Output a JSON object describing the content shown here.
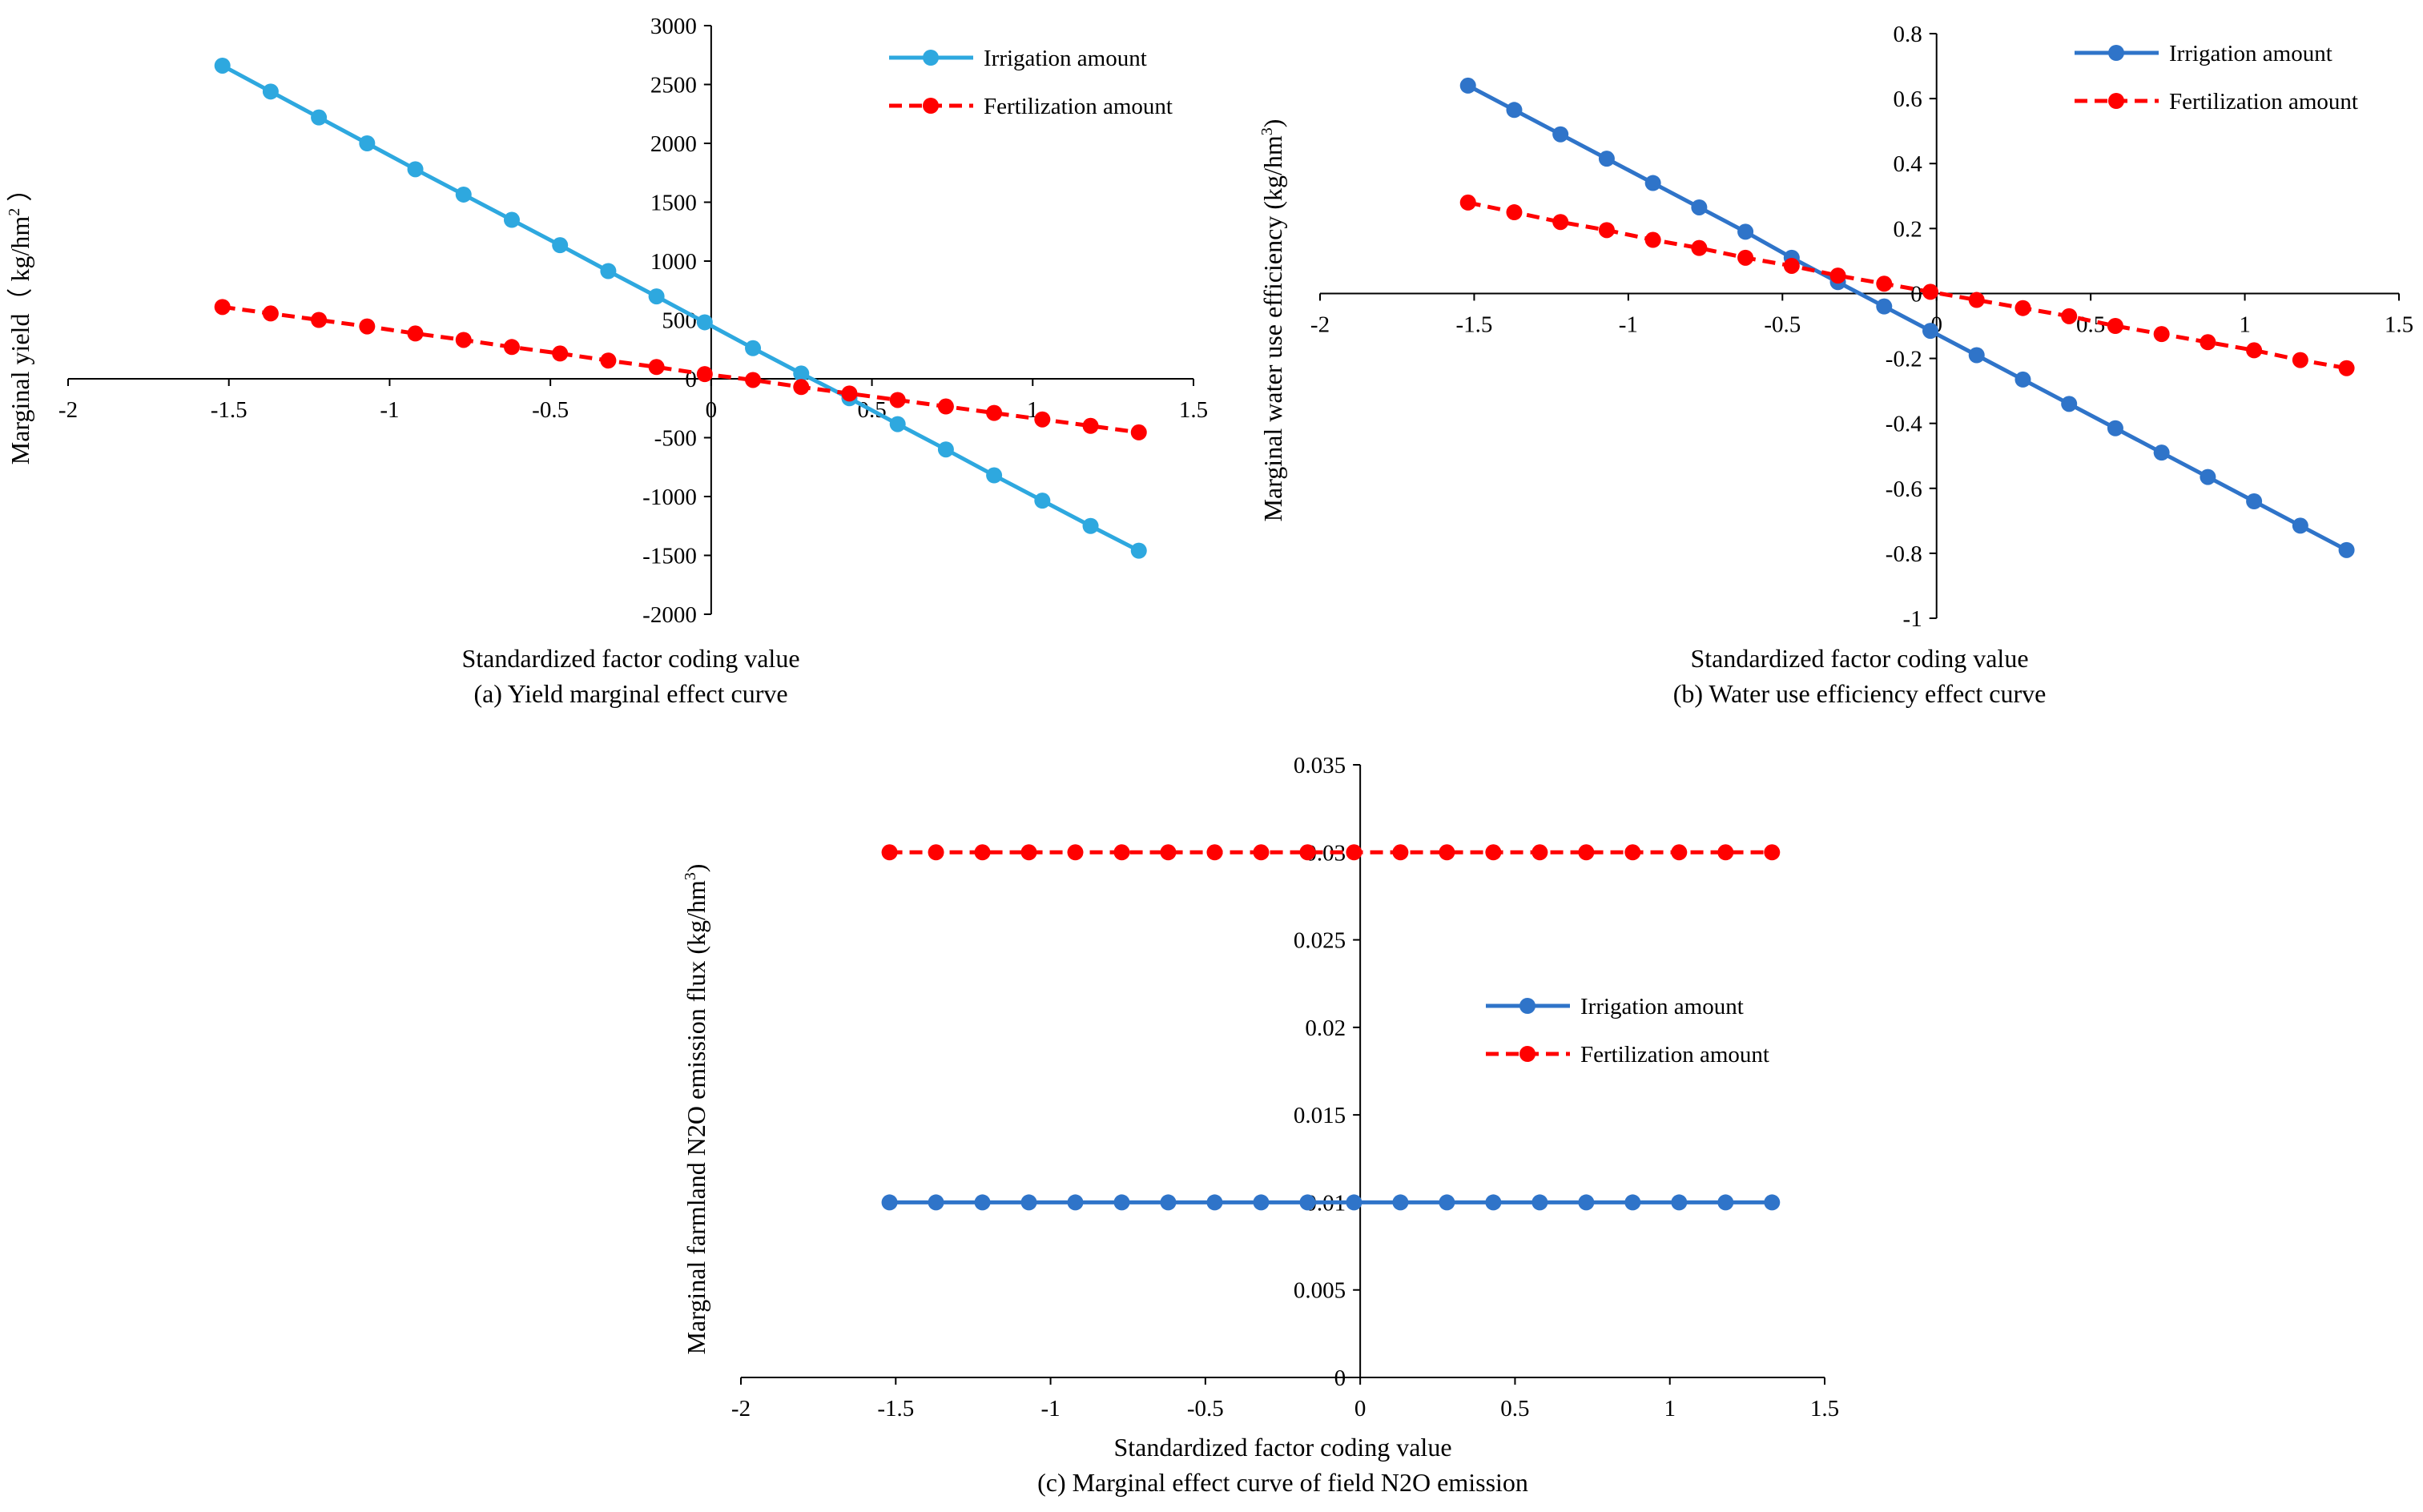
{
  "chart_data": [
    {
      "id": "a",
      "type": "line",
      "caption": "(a) Yield marginal effect curve",
      "xlabel": "Standardized factor coding value",
      "ylabel_main": "Marginal yield",
      "ylabel_unit": "（ kg/hm",
      "ylabel_exp": "2",
      "ylabel_close": " ）",
      "xlim": [
        -2,
        1.5
      ],
      "ylim": [
        -2000,
        3000
      ],
      "xticks": [
        "-2",
        "-1.5",
        "-1",
        "-0.5",
        "0",
        "0.5",
        "1",
        "1.5"
      ],
      "yticks": [
        "-2000",
        "-1500",
        "-1000",
        "-500",
        "0",
        "500",
        "1000",
        "1500",
        "2000",
        "2500",
        "3000"
      ],
      "legend_position": "top-right",
      "series": [
        {
          "name": "Irrigation amount",
          "color": "#2EA8DF",
          "dash": "solid",
          "x": [
            -1.52,
            -1.37,
            -1.22,
            -1.07,
            -0.92,
            -0.77,
            -0.62,
            -0.47,
            -0.32,
            -0.17,
            -0.02,
            0.13,
            0.28,
            0.43,
            0.58,
            0.73,
            0.88,
            1.03,
            1.18,
            1.33
          ],
          "y": [
            2660,
            2440,
            2220,
            2000,
            1780,
            1565,
            1350,
            1135,
            915,
            700,
            480,
            260,
            45,
            -165,
            -385,
            -600,
            -820,
            -1035,
            -1250,
            -1460
          ]
        },
        {
          "name": "Fertilization amount",
          "color": "#FF0000",
          "dash": "dashed",
          "x": [
            -1.52,
            -1.37,
            -1.22,
            -1.07,
            -0.92,
            -0.77,
            -0.62,
            -0.47,
            -0.32,
            -0.17,
            -0.02,
            0.13,
            0.28,
            0.43,
            0.58,
            0.73,
            0.88,
            1.03,
            1.18,
            1.33
          ],
          "y": [
            610,
            555,
            500,
            445,
            385,
            330,
            270,
            215,
            155,
            100,
            40,
            -10,
            -70,
            -125,
            -180,
            -235,
            -290,
            -345,
            -400,
            -455
          ]
        }
      ]
    },
    {
      "id": "b",
      "type": "line",
      "caption": "(b) Water use efficiency effect curve",
      "xlabel": "Standardized factor coding value",
      "ylabel_main": "Marginal water use efficiency (kg/hm",
      "ylabel_exp": "3",
      "ylabel_close": ")",
      "xlim": [
        -2,
        1.5
      ],
      "ylim": [
        -1,
        0.8
      ],
      "xticks": [
        "-2",
        "-1.5",
        "-1",
        "-0.5",
        "0",
        "0.5",
        "1",
        "1.5"
      ],
      "yticks": [
        "-1",
        "-0.8",
        "-0.6",
        "-0.4",
        "-0.2",
        "0",
        "0.2",
        "0.4",
        "0.6",
        "0.8"
      ],
      "legend_position": "top-right",
      "series": [
        {
          "name": "Irrigation amount",
          "color": "#2F74C9",
          "dash": "solid",
          "x": [
            -1.52,
            -1.37,
            -1.22,
            -1.07,
            -0.92,
            -0.77,
            -0.62,
            -0.47,
            -0.32,
            -0.17,
            -0.02,
            0.13,
            0.28,
            0.43,
            0.58,
            0.73,
            0.88,
            1.03,
            1.18,
            1.33
          ],
          "y": [
            0.64,
            0.565,
            0.49,
            0.415,
            0.34,
            0.265,
            0.19,
            0.11,
            0.035,
            -0.04,
            -0.115,
            -0.19,
            -0.265,
            -0.34,
            -0.415,
            -0.49,
            -0.565,
            -0.64,
            -0.715,
            -0.79
          ]
        },
        {
          "name": "Fertilization amount",
          "color": "#FF0000",
          "dash": "dashed",
          "x": [
            -1.52,
            -1.37,
            -1.22,
            -1.07,
            -0.92,
            -0.77,
            -0.62,
            -0.47,
            -0.32,
            -0.17,
            -0.02,
            0.13,
            0.28,
            0.43,
            0.58,
            0.73,
            0.88,
            1.03,
            1.18,
            1.33
          ],
          "y": [
            0.28,
            0.25,
            0.22,
            0.195,
            0.165,
            0.14,
            0.11,
            0.085,
            0.055,
            0.03,
            0.005,
            -0.02,
            -0.045,
            -0.07,
            -0.1,
            -0.125,
            -0.15,
            -0.175,
            -0.205,
            -0.23
          ]
        }
      ]
    },
    {
      "id": "c",
      "type": "line",
      "caption": "(c) Marginal effect curve of field N2O emission",
      "xlabel": "Standardized factor coding value",
      "ylabel_main": "Marginal farmland N2O emission flux (kg/hm",
      "ylabel_exp": "3",
      "ylabel_close": ")",
      "xlim": [
        -2,
        1.5
      ],
      "ylim": [
        0,
        0.035
      ],
      "xticks": [
        "-2",
        "-1.5",
        "-1",
        "-0.5",
        "0",
        "0.5",
        "1",
        "1.5"
      ],
      "yticks": [
        "0",
        "0.005",
        "0.01",
        "0.015",
        "0.02",
        "0.025",
        "0.03",
        "0.035"
      ],
      "legend_position": "center-right",
      "series": [
        {
          "name": "Irrigation amount",
          "color": "#2F74C9",
          "dash": "solid",
          "x": [
            -1.52,
            -1.37,
            -1.22,
            -1.07,
            -0.92,
            -0.77,
            -0.62,
            -0.47,
            -0.32,
            -0.17,
            -0.02,
            0.13,
            0.28,
            0.43,
            0.58,
            0.73,
            0.88,
            1.03,
            1.18,
            1.33
          ],
          "y": [
            0.01,
            0.01,
            0.01,
            0.01,
            0.01,
            0.01,
            0.01,
            0.01,
            0.01,
            0.01,
            0.01,
            0.01,
            0.01,
            0.01,
            0.01,
            0.01,
            0.01,
            0.01,
            0.01,
            0.01
          ]
        },
        {
          "name": "Fertilization amount",
          "color": "#FF0000",
          "dash": "dashed",
          "x": [
            -1.52,
            -1.37,
            -1.22,
            -1.07,
            -0.92,
            -0.77,
            -0.62,
            -0.47,
            -0.32,
            -0.17,
            -0.02,
            0.13,
            0.28,
            0.43,
            0.58,
            0.73,
            0.88,
            1.03,
            1.18,
            1.33
          ],
          "y": [
            0.03,
            0.03,
            0.03,
            0.03,
            0.03,
            0.03,
            0.03,
            0.03,
            0.03,
            0.03,
            0.03,
            0.03,
            0.03,
            0.03,
            0.03,
            0.03,
            0.03,
            0.03,
            0.03,
            0.03
          ]
        }
      ]
    }
  ]
}
